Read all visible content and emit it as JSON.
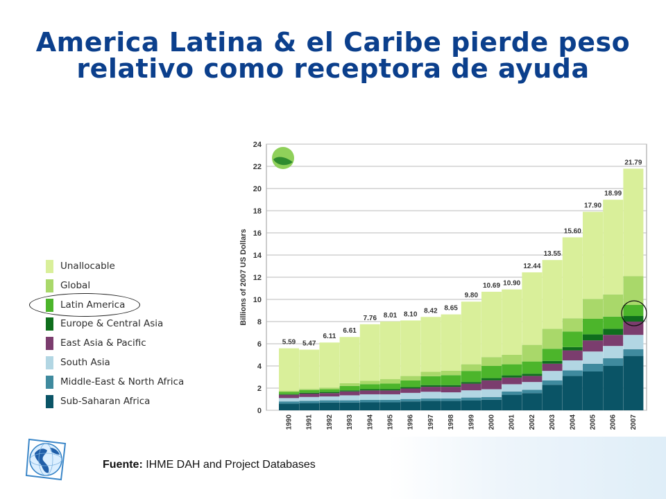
{
  "title": {
    "line1": "America Latina & el Caribe pierde peso",
    "line2": "relativo como receptora de ayuda"
  },
  "source": {
    "label": "Fuente:",
    "text": "IHME DAH and Project Databases"
  },
  "legend": [
    {
      "label": "Unallocable",
      "color": "#d9ef9a"
    },
    {
      "label": "Global",
      "color": "#a9d86a"
    },
    {
      "label": "Latin America",
      "color": "#4cb52b"
    },
    {
      "label": "Europe & Central Asia",
      "color": "#0f6e1d"
    },
    {
      "label": "East Asia & Pacific",
      "color": "#7b3d6e"
    },
    {
      "label": "South Asia",
      "color": "#b2d6e3"
    },
    {
      "label": "Middle-East & North Africa",
      "color": "#3f8a9e"
    },
    {
      "label": "Sub-Saharan Africa",
      "color": "#0a5466"
    }
  ],
  "chart_data": {
    "type": "bar",
    "stacked": true,
    "ylabel": "Billions of 2007 US Dollars",
    "ylim": [
      0,
      24
    ],
    "yticks": [
      "0",
      "2",
      "4",
      "6",
      "8",
      "10",
      "12",
      "14",
      "16",
      "18",
      "20",
      "22",
      "24"
    ],
    "grid": true,
    "categories": [
      "1990",
      "1991",
      "1992",
      "1993",
      "1994",
      "1995",
      "1996",
      "1997",
      "1998",
      "1999",
      "2000",
      "2001",
      "2002",
      "2003",
      "2004",
      "2005",
      "2006",
      "2007"
    ],
    "totals": [
      5.59,
      5.47,
      6.11,
      6.61,
      7.76,
      8.01,
      8.1,
      8.42,
      8.65,
      9.8,
      10.69,
      10.9,
      12.44,
      13.55,
      15.6,
      17.9,
      18.99,
      21.79
    ],
    "total_labels": [
      "5.59",
      "5.47",
      "6.11",
      "6.61",
      "7.76",
      "8.01",
      "8.10",
      "8.42",
      "8.65",
      "9.80",
      "10.69",
      "10.90",
      "12.44",
      "13.55",
      "15.60",
      "17.90",
      "18.99",
      "21.79"
    ],
    "series": [
      {
        "name": "Sub-Saharan Africa",
        "values": [
          0.6,
          0.65,
          0.7,
          0.7,
          0.72,
          0.72,
          0.8,
          0.85,
          0.85,
          0.9,
          0.95,
          1.4,
          1.55,
          2.3,
          3.1,
          3.5,
          4.0,
          4.9
        ]
      },
      {
        "name": "Middle-East & North Africa",
        "values": [
          0.2,
          0.2,
          0.2,
          0.2,
          0.22,
          0.22,
          0.22,
          0.22,
          0.22,
          0.25,
          0.25,
          0.3,
          0.3,
          0.4,
          0.5,
          0.7,
          0.7,
          0.6
        ]
      },
      {
        "name": "South Asia",
        "values": [
          0.3,
          0.35,
          0.35,
          0.45,
          0.5,
          0.5,
          0.55,
          0.6,
          0.55,
          0.65,
          0.7,
          0.65,
          0.7,
          0.85,
          0.9,
          1.1,
          1.1,
          1.3
        ]
      },
      {
        "name": "East Asia & Pacific",
        "values": [
          0.3,
          0.3,
          0.3,
          0.35,
          0.35,
          0.35,
          0.4,
          0.45,
          0.5,
          0.6,
          0.8,
          0.6,
          0.55,
          0.65,
          0.9,
          1.0,
          1.0,
          1.2
        ]
      },
      {
        "name": "Europe & Central Asia",
        "values": [
          0.05,
          0.08,
          0.1,
          0.1,
          0.12,
          0.12,
          0.12,
          0.15,
          0.15,
          0.15,
          0.2,
          0.2,
          0.2,
          0.25,
          0.3,
          0.55,
          0.55,
          0.5
        ]
      },
      {
        "name": "Latin America",
        "values": [
          0.2,
          0.25,
          0.25,
          0.4,
          0.45,
          0.5,
          0.6,
          0.8,
          0.9,
          1.0,
          1.1,
          1.0,
          1.1,
          1.1,
          1.4,
          1.4,
          1.1,
          1.0
        ]
      },
      {
        "name": "Global",
        "values": [
          0.1,
          0.1,
          0.15,
          0.25,
          0.3,
          0.4,
          0.4,
          0.4,
          0.4,
          0.6,
          0.8,
          0.85,
          1.5,
          1.8,
          1.2,
          1.8,
          2.0,
          2.6
        ]
      },
      {
        "name": "Unallocable",
        "values": [
          3.84,
          3.54,
          4.06,
          4.16,
          5.1,
          5.2,
          5.01,
          4.95,
          5.08,
          5.65,
          5.89,
          5.9,
          6.54,
          6.2,
          7.3,
          7.85,
          8.54,
          9.69
        ]
      }
    ]
  }
}
